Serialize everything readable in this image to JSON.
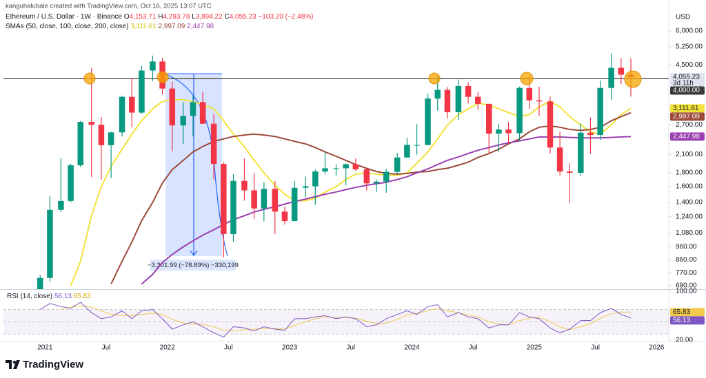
{
  "chart_data": {
    "type": "candlestick",
    "credit": "kanguhalubale created with TradingView.com, Oct 16, 2025 13:07 UTC",
    "symbol": "Ethereum / U.S. Dollar · 1W · Binance",
    "ohlc": [
      {
        "key": "O",
        "value": "4,153.71"
      },
      {
        "key": "H",
        "value": "4,293.78"
      },
      {
        "key": "L",
        "value": "3,894.22"
      },
      {
        "key": "C",
        "value": "4,055.23"
      }
    ],
    "change": "−103.20 (−2.48%)",
    "sma_title": "SMAs (50, close, 100, close, 200, close)",
    "currency": "USD",
    "countdown": "3d 11h",
    "measure_label": "−3,301.99 (−78.89%) −330,199",
    "brand": "TradingView",
    "log_scale": true,
    "xlim": [
      2020.66,
      2026.1
    ],
    "xticks": [
      {
        "value": 2021,
        "label": "2021"
      },
      {
        "value": 2021.5,
        "label": "Jul"
      },
      {
        "value": 2022,
        "label": "2022"
      },
      {
        "value": 2022.5,
        "label": "Jul"
      },
      {
        "value": 2023,
        "label": "2023"
      },
      {
        "value": 2023.5,
        "label": "Jul"
      },
      {
        "value": 2024,
        "label": "2024"
      },
      {
        "value": 2024.5,
        "label": "Jul"
      },
      {
        "value": 2025,
        "label": "2025"
      },
      {
        "value": 2025.5,
        "label": "Jul"
      },
      {
        "value": 2026,
        "label": "2026"
      }
    ],
    "ylim": [
      670,
      6550
    ],
    "yticks": [
      {
        "value": 6000,
        "label": "6,000.00"
      },
      {
        "value": 5250,
        "label": "5,250.00"
      },
      {
        "value": 4500,
        "label": "4,500.00"
      },
      {
        "value": 2700,
        "label": "2,700.00"
      },
      {
        "value": 2100,
        "label": "2,100.00"
      },
      {
        "value": 1800,
        "label": "1,800.00"
      },
      {
        "value": 1600,
        "label": "1,600.00"
      },
      {
        "value": 1400,
        "label": "1,400.00"
      },
      {
        "value": 1240,
        "label": "1,240.00"
      },
      {
        "value": 1080,
        "label": "1,080.00"
      },
      {
        "value": 960,
        "label": "960.00"
      },
      {
        "value": 860,
        "label": "860.00"
      },
      {
        "value": 770,
        "label": "770.00"
      },
      {
        "value": 690,
        "label": "690.00"
      }
    ],
    "hline": {
      "value": 4000,
      "label": "4,000.00",
      "color": "#3b3b3b"
    },
    "candles": {
      "up_color": "#089981",
      "down_color": "#f23645",
      "badge_color": "#e0e3eb",
      "close_label": "4,055.23",
      "x": [
        2020.96,
        2021.04,
        2021.13,
        2021.21,
        2021.29,
        2021.38,
        2021.46,
        2021.54,
        2021.63,
        2021.71,
        2021.79,
        2021.88,
        2021.96,
        2022.04,
        2022.13,
        2022.21,
        2022.29,
        2022.38,
        2022.46,
        2022.54,
        2022.63,
        2022.71,
        2022.79,
        2022.88,
        2022.96,
        2023.04,
        2023.13,
        2023.21,
        2023.29,
        2023.38,
        2023.46,
        2023.54,
        2023.63,
        2023.71,
        2023.79,
        2023.88,
        2023.96,
        2024.04,
        2024.13,
        2024.21,
        2024.29,
        2024.38,
        2024.46,
        2024.54,
        2024.63,
        2024.71,
        2024.79,
        2024.88,
        2024.96,
        2025.04,
        2025.13,
        2025.21,
        2025.29,
        2025.38,
        2025.46,
        2025.54,
        2025.63,
        2025.71,
        2025.79
      ],
      "open": [
        616,
        737,
        1314,
        1417,
        1918,
        2772,
        2707,
        2275,
        2536,
        3430,
        3000,
        4288,
        4630,
        3680,
        2690,
        2920,
        3280,
        2730,
        1940,
        1070,
        1680,
        1550,
        1330,
        1570,
        1295,
        1195,
        1585,
        1605,
        1820,
        1870,
        1870,
        1935,
        1855,
        1645,
        1670,
        1815,
        2050,
        2280,
        2280,
        3380,
        3640,
        3010,
        3760,
        3430,
        3230,
        2510,
        2600,
        2520,
        3700,
        3330,
        3300,
        2230,
        1820,
        1800,
        2530,
        2480,
        3700,
        4390,
        4140
      ],
      "high": [
        757,
        1476,
        2041,
        1943,
        2797,
        4380,
        2891,
        2550,
        3467,
        4030,
        4460,
        4870,
        4780,
        3900,
        3280,
        3480,
        3580,
        2960,
        1970,
        1780,
        2030,
        1790,
        1660,
        1680,
        1350,
        1680,
        1740,
        1850,
        2140,
        1930,
        1950,
        2030,
        1870,
        1700,
        1860,
        2130,
        2420,
        2720,
        3520,
        4090,
        3730,
        3970,
        3890,
        3560,
        3240,
        2730,
        2770,
        3740,
        4110,
        3740,
        3440,
        2550,
        1950,
        2740,
        2880,
        3940,
        4950,
        4770,
        4760
      ],
      "low": [
        540,
        715,
        1290,
        1400,
        1890,
        1737,
        1700,
        1720,
        2450,
        2650,
        2970,
        3920,
        3500,
        2160,
        2300,
        2450,
        2720,
        1700,
        880,
        1000,
        1420,
        1220,
        1190,
        1070,
        1160,
        1190,
        1460,
        1370,
        1780,
        1760,
        1620,
        1830,
        1550,
        1530,
        1520,
        1780,
        2040,
        2100,
        2270,
        3050,
        2850,
        2820,
        3240,
        3080,
        2110,
        2150,
        2310,
        2360,
        3100,
        2920,
        2120,
        1760,
        1390,
        1750,
        2110,
        2380,
        3350,
        3820,
        3440
      ],
      "close": [
        737,
        1314,
        1417,
        1918,
        2772,
        2707,
        2275,
        2536,
        3430,
        3000,
        4288,
        4630,
        3680,
        2690,
        2920,
        3280,
        2730,
        1940,
        1070,
        1680,
        1550,
        1330,
        1570,
        1295,
        1195,
        1585,
        1605,
        1820,
        1870,
        1870,
        1935,
        1855,
        1645,
        1670,
        1815,
        2050,
        2280,
        2280,
        3380,
        3640,
        3010,
        3760,
        3430,
        3230,
        2510,
        2600,
        2520,
        3700,
        3330,
        3300,
        2230,
        1820,
        1800,
        2530,
        2480,
        3700,
        4390,
        4140,
        4055.23
      ]
    },
    "overlays": [
      {
        "color": "#f2e33a",
        "text_color": "#131722",
        "last_label": "3,111.61",
        "values": [
          null,
          null,
          null,
          690,
          850,
          1250,
          1600,
          1900,
          2200,
          2500,
          2800,
          3100,
          3300,
          3350,
          3350,
          3300,
          3200,
          3100,
          2800,
          2500,
          2250,
          2000,
          1800,
          1620,
          1500,
          1420,
          1420,
          1450,
          1530,
          1600,
          1700,
          1780,
          1800,
          1780,
          1760,
          1760,
          1800,
          1950,
          2150,
          2400,
          2700,
          2950,
          3100,
          3250,
          3200,
          3100,
          3000,
          2900,
          2950,
          3150,
          3300,
          3150,
          2900,
          2700,
          2550,
          2500,
          2700,
          2950,
          3111.61
        ]
      },
      {
        "color": "#9c4a3a",
        "text_color": "#ffffff",
        "last_label": "2,997.09",
        "values": [
          null,
          null,
          null,
          null,
          null,
          null,
          null,
          700,
          850,
          1000,
          1200,
          1400,
          1650,
          1850,
          2000,
          2150,
          2250,
          2350,
          2400,
          2450,
          2480,
          2500,
          2480,
          2450,
          2400,
          2350,
          2300,
          2230,
          2150,
          2070,
          2000,
          1930,
          1870,
          1820,
          1790,
          1780,
          1790,
          1810,
          1820,
          1850,
          1870,
          1920,
          1970,
          2050,
          2120,
          2200,
          2300,
          2400,
          2550,
          2650,
          2680,
          2650,
          2600,
          2580,
          2600,
          2650,
          2800,
          2900,
          2997.09
        ]
      },
      {
        "color": "#9a3fb0",
        "text_color": "#ffffff",
        "last_label": "2,447.98",
        "values": [
          null,
          null,
          null,
          null,
          null,
          null,
          null,
          null,
          null,
          null,
          700,
          760,
          840,
          900,
          960,
          1010,
          1060,
          1110,
          1160,
          1210,
          1250,
          1290,
          1320,
          1350,
          1380,
          1410,
          1440,
          1470,
          1500,
          1530,
          1560,
          1590,
          1620,
          1640,
          1660,
          1700,
          1740,
          1800,
          1860,
          1930,
          2000,
          2060,
          2120,
          2180,
          2230,
          2280,
          2320,
          2360,
          2400,
          2440,
          2440,
          2440,
          2430,
          2420,
          2420,
          2420,
          2430,
          2440,
          2447.98
        ]
      }
    ],
    "rsi": {
      "title": "RSI (14, close)",
      "ylim": [
        20,
        100
      ],
      "yticks": [
        {
          "value": 100,
          "label": "100.00"
        },
        {
          "value": 20,
          "label": "20.00"
        }
      ],
      "levels": [
        70,
        50,
        30
      ],
      "color": "#7e57c2",
      "ma_color": "#f2c94c",
      "value_label": "56.13",
      "ma_label": "65.83",
      "values": [
        70,
        80,
        75,
        72,
        82,
        65,
        55,
        58,
        68,
        55,
        68,
        70,
        55,
        38,
        45,
        50,
        42,
        32,
        25,
        42,
        40,
        35,
        42,
        38,
        36,
        55,
        55,
        58,
        60,
        55,
        58,
        55,
        42,
        45,
        55,
        62,
        68,
        62,
        75,
        78,
        58,
        65,
        58,
        55,
        40,
        45,
        45,
        65,
        58,
        55,
        40,
        32,
        38,
        52,
        52,
        65,
        72,
        62,
        56.13
      ],
      "ma": [
        null,
        null,
        72,
        74,
        76,
        74,
        68,
        62,
        60,
        60,
        62,
        64,
        62,
        54,
        48,
        46,
        46,
        42,
        36,
        35,
        37,
        38,
        39,
        39,
        38,
        44,
        50,
        55,
        58,
        57,
        57,
        56,
        51,
        47,
        48,
        54,
        61,
        64,
        68,
        72,
        68,
        65,
        61,
        58,
        50,
        46,
        45,
        52,
        56,
        58,
        50,
        42,
        37,
        42,
        47,
        56,
        63,
        66,
        65.83
      ]
    }
  }
}
